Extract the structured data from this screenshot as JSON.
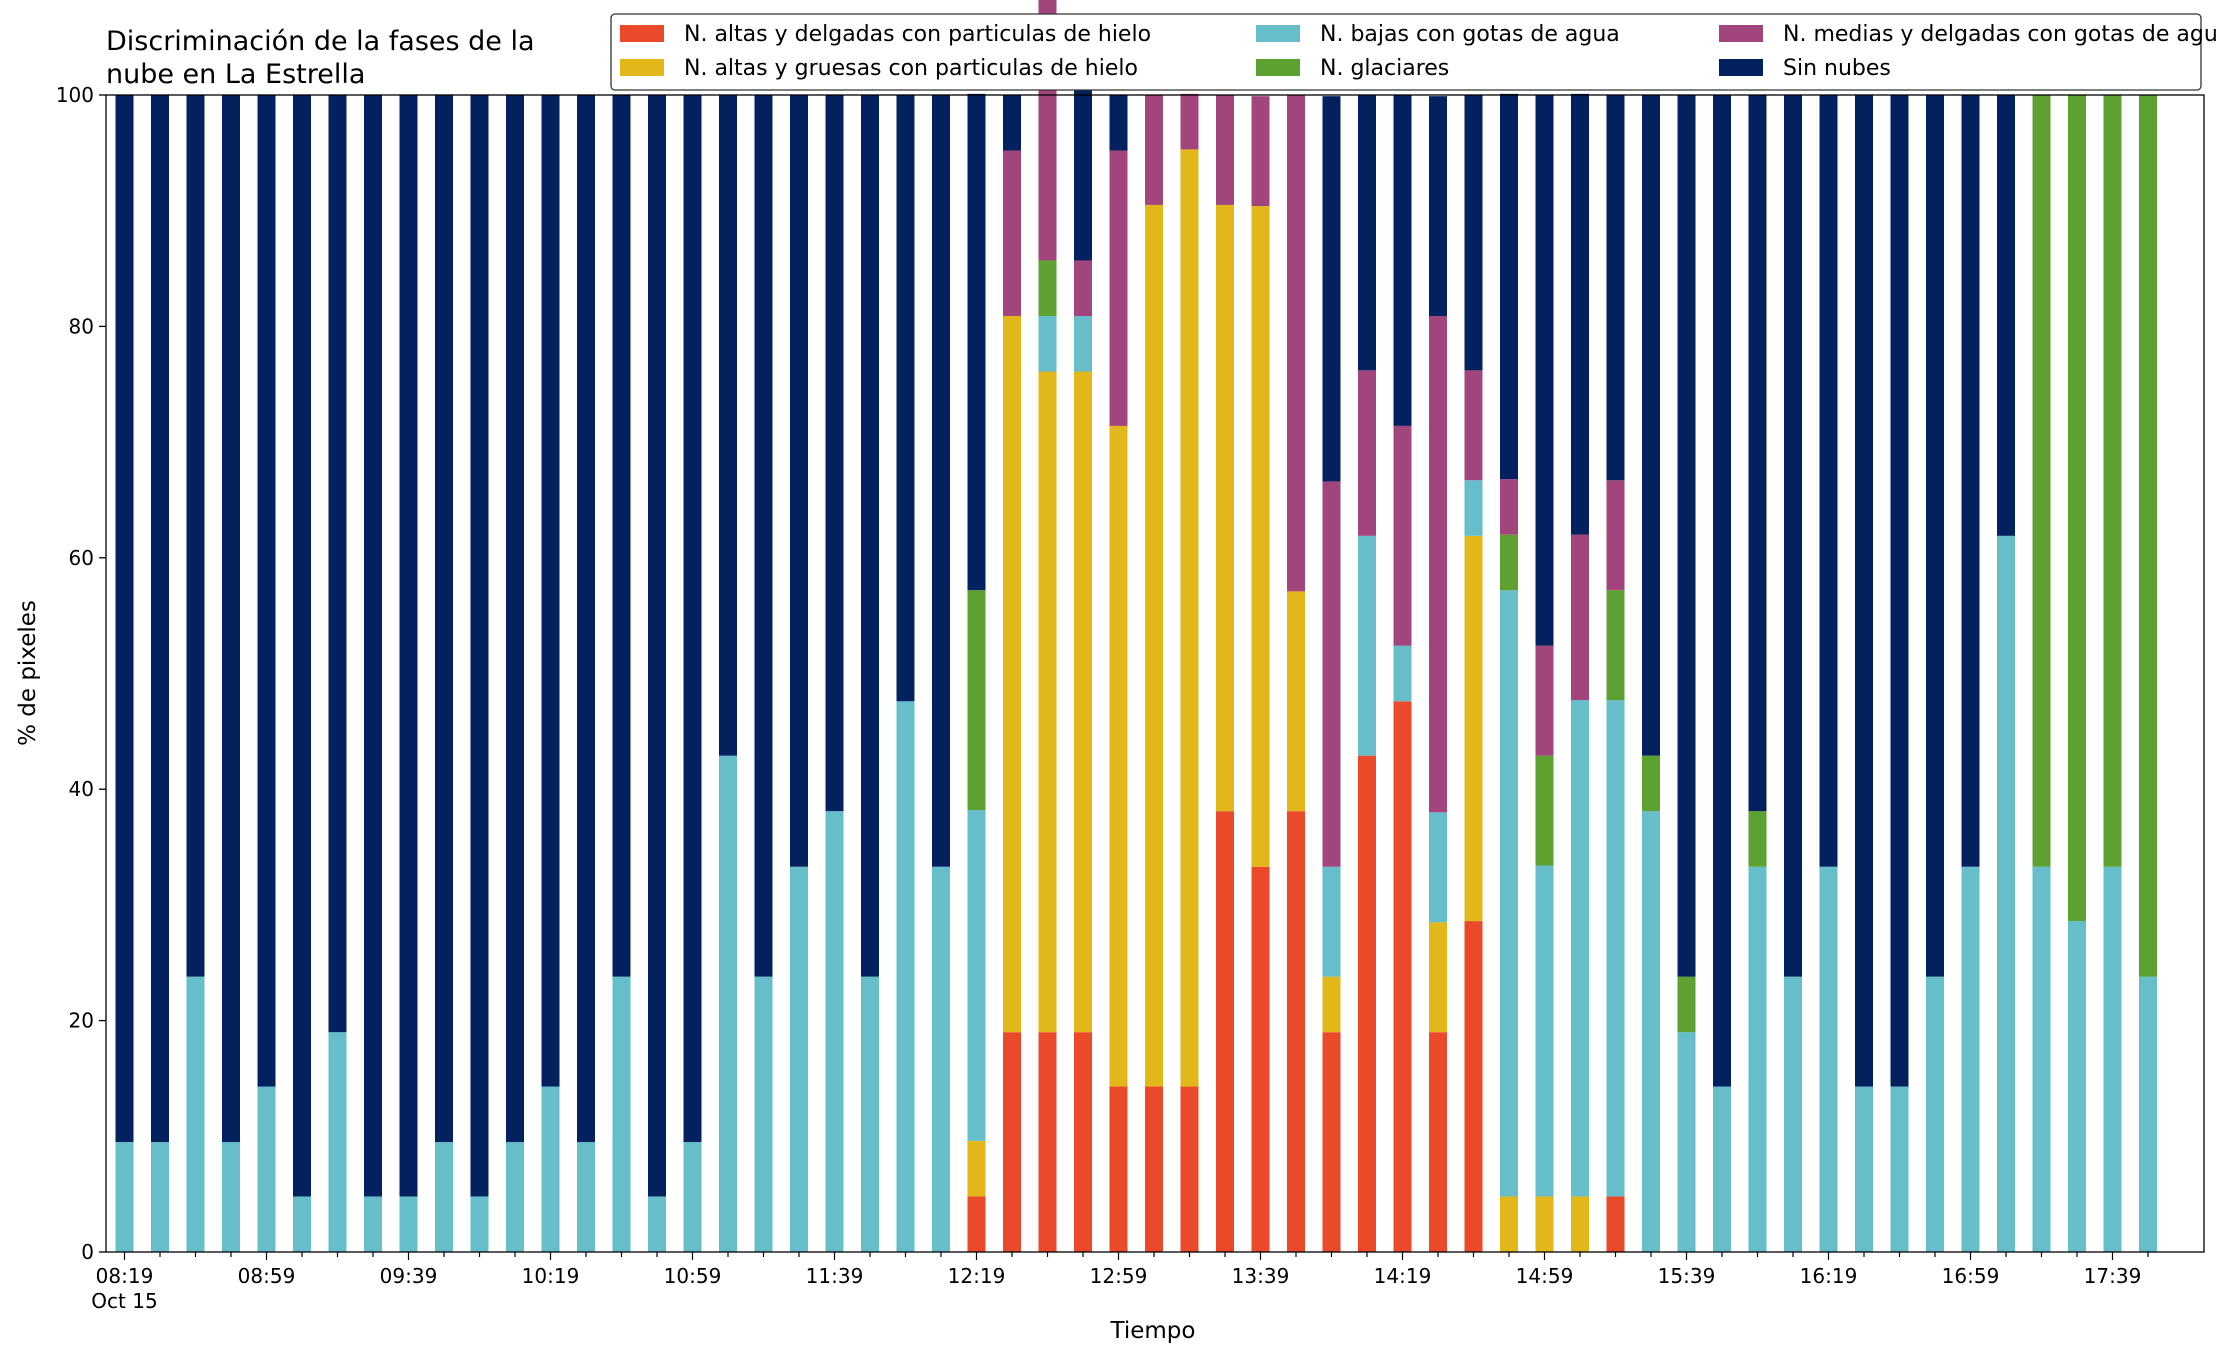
{
  "chart_data": {
    "type": "bar",
    "stacked": true,
    "title_line1": "Discriminación de la fases de la",
    "title_line2": "nube en La Estrella",
    "xlabel": "Tiempo",
    "ylabel": "% de pixeles",
    "ylim": [
      0,
      100
    ],
    "yticks": [
      0,
      20,
      40,
      60,
      80,
      100
    ],
    "xtick_labels": [
      "08:19",
      "08:59",
      "09:39",
      "10:19",
      "10:59",
      "11:39",
      "12:19",
      "12:59",
      "13:39",
      "14:19",
      "14:59",
      "15:39",
      "16:19",
      "16:59",
      "17:39"
    ],
    "xtick_sublabel": "Oct 15",
    "legend_position": "top-right",
    "grid": false,
    "series": [
      {
        "name": "N. altas y delgadas con particulas de hielo",
        "color": "#EA4A2A",
        "values": [
          0,
          0,
          0,
          0,
          0,
          0,
          0,
          0,
          0,
          0,
          0,
          0,
          0,
          0,
          0,
          0,
          0,
          0,
          0,
          0,
          0,
          0,
          0,
          0,
          4.8,
          19,
          19,
          19,
          14.3,
          14.3,
          14.3,
          38.1,
          33.3,
          38.1,
          19,
          42.9,
          47.6,
          19,
          28.6,
          0,
          0,
          0,
          4.8,
          0,
          0,
          0,
          0,
          0,
          0,
          0,
          0,
          0,
          0,
          0,
          0,
          0,
          0,
          0
        ]
      },
      {
        "name": "N. altas y gruesas con particulas de hielo",
        "color": "#E2B71A",
        "values": [
          0,
          0,
          0,
          0,
          0,
          0,
          0,
          0,
          0,
          0,
          0,
          0,
          0,
          0,
          0,
          0,
          0,
          0,
          0,
          0,
          0,
          0,
          0,
          0,
          4.8,
          61.9,
          57.1,
          57.1,
          57.1,
          76.2,
          81,
          52.4,
          57.1,
          19,
          4.8,
          0,
          0,
          9.5,
          33.3,
          4.8,
          4.8,
          4.8,
          0,
          0,
          0,
          0,
          0,
          0,
          0,
          0,
          0,
          0,
          0,
          0,
          0,
          0,
          0,
          0
        ]
      },
      {
        "name": "N. bajas con gotas de agua",
        "color": "#66BECB",
        "values": [
          9.5,
          9.5,
          23.8,
          9.5,
          14.3,
          4.8,
          19,
          4.8,
          4.8,
          9.5,
          4.8,
          9.5,
          14.3,
          9.5,
          23.8,
          4.8,
          9.5,
          42.9,
          23.8,
          33.3,
          38.1,
          23.8,
          47.6,
          33.3,
          28.6,
          0,
          4.8,
          4.8,
          0,
          0,
          0,
          0,
          0,
          0,
          9.5,
          19,
          4.8,
          9.5,
          4.8,
          52.4,
          28.6,
          42.9,
          42.9,
          38.1,
          19,
          14.3,
          33.3,
          23.8,
          33.3,
          14.3,
          14.3,
          23.8,
          33.3,
          61.9,
          33.3,
          28.6,
          33.3,
          23.8
        ]
      },
      {
        "name": "N. glaciares",
        "color": "#5DA131",
        "values": [
          0,
          0,
          0,
          0,
          0,
          0,
          0,
          0,
          0,
          0,
          0,
          0,
          0,
          0,
          0,
          0,
          0,
          0,
          0,
          0,
          0,
          0,
          0,
          0,
          19,
          0,
          4.8,
          0,
          0,
          0,
          0,
          0,
          0,
          0,
          0,
          0,
          0,
          0,
          0,
          4.8,
          9.5,
          0,
          9.5,
          4.8,
          4.8,
          0,
          4.8,
          0,
          0,
          0,
          0,
          0,
          0,
          0,
          66.7,
          71.4,
          66.7,
          76.2
        ]
      },
      {
        "name": "N. medias y delgadas con gotas de agua",
        "color": "#A2457D",
        "values": [
          0,
          0,
          0,
          0,
          0,
          0,
          0,
          0,
          0,
          0,
          0,
          0,
          0,
          0,
          0,
          0,
          0,
          0,
          0,
          0,
          0,
          0,
          0,
          0,
          0,
          14.3,
          23.8,
          4.8,
          23.8,
          9.5,
          4.8,
          9.5,
          9.5,
          42.9,
          33.3,
          14.3,
          19,
          42.9,
          9.5,
          4.8,
          9.5,
          14.3,
          9.5,
          0,
          0,
          0,
          0,
          0,
          0,
          0,
          0,
          0,
          0,
          0,
          0,
          0,
          0,
          0
        ]
      },
      {
        "name": "Sin nubes",
        "color": "#03215E",
        "values": [
          90.5,
          90.5,
          76.2,
          90.5,
          85.7,
          95.2,
          81,
          95.2,
          95.2,
          90.5,
          95.2,
          90.5,
          85.7,
          90.5,
          76.2,
          95.2,
          90.5,
          57.1,
          76.2,
          66.7,
          61.9,
          76.2,
          52.4,
          66.7,
          42.9,
          4.8,
          0,
          19,
          4.8,
          0,
          0,
          0,
          0,
          0,
          33.3,
          23.8,
          28.6,
          19,
          23.8,
          33.3,
          47.6,
          38.1,
          33.3,
          57.1,
          76.2,
          85.7,
          61.9,
          76.2,
          66.7,
          85.7,
          85.7,
          76.2,
          66.7,
          38.1,
          0,
          0,
          0,
          0
        ]
      }
    ]
  }
}
